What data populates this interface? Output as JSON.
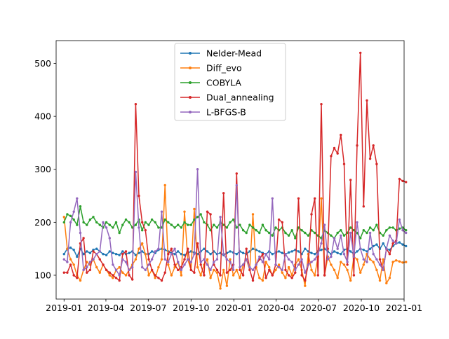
{
  "chart_data": {
    "type": "line",
    "title": "",
    "xlabel": "",
    "ylabel": "",
    "x_start": "2019-01-01",
    "x_step_days": 7,
    "xlim": [
      "2018-12-15",
      "2021-01-01"
    ],
    "ylim": [
      55,
      543
    ],
    "x_ticks": [
      "2019-01",
      "2019-04",
      "2019-07",
      "2019-10",
      "2020-01",
      "2020-04",
      "2020-07",
      "2020-10",
      "2021-01"
    ],
    "y_ticks": [
      100,
      200,
      300,
      400,
      500
    ],
    "legend_position": "top-center",
    "series": [
      {
        "name": "Nelder-Mead",
        "color": "#1f77b4",
        "values": [
          140,
          150,
          152,
          148,
          135,
          150,
          140,
          145,
          142,
          148,
          150,
          145,
          140,
          138,
          145,
          142,
          140,
          138,
          145,
          140,
          142,
          145,
          138,
          142,
          145,
          140,
          140,
          145,
          142,
          148,
          150,
          148,
          145,
          142,
          140,
          145,
          140,
          138,
          142,
          145,
          143,
          140,
          145,
          150,
          145,
          140,
          145,
          140,
          142,
          138,
          142,
          145,
          143,
          140,
          145,
          142,
          140,
          145,
          150,
          148,
          145,
          142,
          140,
          145,
          140,
          143,
          145,
          142,
          140,
          143,
          145,
          148,
          145,
          140,
          150,
          145,
          142,
          140,
          145,
          148,
          150,
          145,
          140,
          145,
          142,
          140,
          148,
          150,
          145,
          140,
          145,
          150,
          148,
          145,
          150,
          155,
          158,
          150,
          160,
          150,
          148,
          155,
          160,
          162,
          158,
          155
        ]
      },
      {
        "name": "Diff_evo",
        "color": "#ff7f0e",
        "values": [
          210,
          150,
          130,
          120,
          100,
          90,
          110,
          125,
          120,
          130,
          115,
          105,
          120,
          110,
          100,
          95,
          110,
          115,
          105,
          100,
          110,
          120,
          130,
          150,
          160,
          140,
          100,
          110,
          95,
          115,
          130,
          270,
          120,
          100,
          115,
          125,
          100,
          220,
          130,
          110,
          225,
          115,
          100,
          120,
          130,
          95,
          110,
          105,
          75,
          110,
          80,
          130,
          100,
          110,
          95,
          120,
          130,
          110,
          215,
          115,
          95,
          90,
          125,
          115,
          100,
          110,
          120,
          105,
          95,
          115,
          100,
          120,
          130,
          110,
          80,
          140,
          110,
          100,
          135,
          245,
          100,
          135,
          120,
          110,
          95,
          125,
          120,
          110,
          90,
          135,
          130,
          105,
          120,
          140,
          130,
          125,
          110,
          90,
          130,
          85,
          95,
          125,
          128,
          126,
          124,
          125
        ]
      },
      {
        "name": "COBYLA",
        "color": "#2ca02c",
        "values": [
          200,
          215,
          212,
          205,
          195,
          230,
          200,
          195,
          205,
          210,
          200,
          195,
          190,
          200,
          195,
          190,
          200,
          180,
          195,
          205,
          200,
          190,
          195,
          205,
          185,
          200,
          195,
          205,
          200,
          190,
          190,
          205,
          200,
          195,
          190,
          195,
          190,
          200,
          195,
          195,
          205,
          210,
          215,
          200,
          195,
          185,
          195,
          190,
          200,
          195,
          190,
          200,
          205,
          190,
          195,
          185,
          180,
          195,
          190,
          185,
          180,
          195,
          185,
          180,
          175,
          190,
          185,
          190,
          180,
          175,
          185,
          170,
          190,
          185,
          180,
          175,
          185,
          180,
          175,
          170,
          185,
          180,
          175,
          170,
          180,
          185,
          175,
          180,
          190,
          185,
          180,
          170,
          185,
          180,
          190,
          185,
          195,
          180,
          175,
          185,
          190,
          190,
          185,
          188,
          190,
          185
        ]
      },
      {
        "name": "Dual_annealing",
        "color": "#d62728",
        "values": [
          105,
          105,
          120,
          100,
          95,
          160,
          170,
          105,
          110,
          145,
          140,
          130,
          120,
          110,
          105,
          100,
          95,
          90,
          140,
          145,
          100,
          92,
          423,
          250,
          200,
          185,
          130,
          110,
          100,
          95,
          90,
          105,
          140,
          150,
          120,
          110,
          115,
          130,
          150,
          110,
          105,
          160,
          120,
          100,
          220,
          215,
          120,
          110,
          100,
          255,
          105,
          110,
          120,
          292,
          110,
          100,
          150,
          110,
          90,
          120,
          130,
          140,
          95,
          110,
          100,
          120,
          205,
          200,
          110,
          100,
          95,
          105,
          245,
          100,
          90,
          120,
          215,
          245,
          100,
          423,
          100,
          150,
          325,
          340,
          330,
          365,
          310,
          120,
          280,
          100,
          345,
          520,
          230,
          430,
          320,
          345,
          310,
          130,
          110,
          150,
          140,
          160,
          165,
          282,
          278,
          276
        ]
      },
      {
        "name": "L-BFGS-B",
        "color": "#9467bd",
        "values": [
          130,
          125,
          200,
          220,
          245,
          180,
          110,
          115,
          125,
          130,
          140,
          145,
          200,
          190,
          170,
          120,
          110,
          100,
          130,
          125,
          110,
          115,
          295,
          190,
          115,
          110,
          120,
          130,
          145,
          150,
          220,
          130,
          125,
          140,
          150,
          125,
          110,
          120,
          130,
          125,
          140,
          300,
          125,
          130,
          120,
          110,
          125,
          130,
          210,
          140,
          130,
          125,
          110,
          270,
          115,
          120,
          130,
          115,
          110,
          120,
          135,
          125,
          140,
          130,
          245,
          120,
          115,
          110,
          140,
          130,
          125,
          110,
          120,
          130,
          105,
          120,
          125,
          130,
          140,
          160,
          195,
          130,
          135,
          170,
          150,
          175,
          140,
          125,
          180,
          135,
          200,
          150,
          130,
          125,
          180,
          140,
          130,
          120,
          110,
          150,
          175,
          165,
          160,
          205,
          185,
          180
        ]
      }
    ]
  }
}
